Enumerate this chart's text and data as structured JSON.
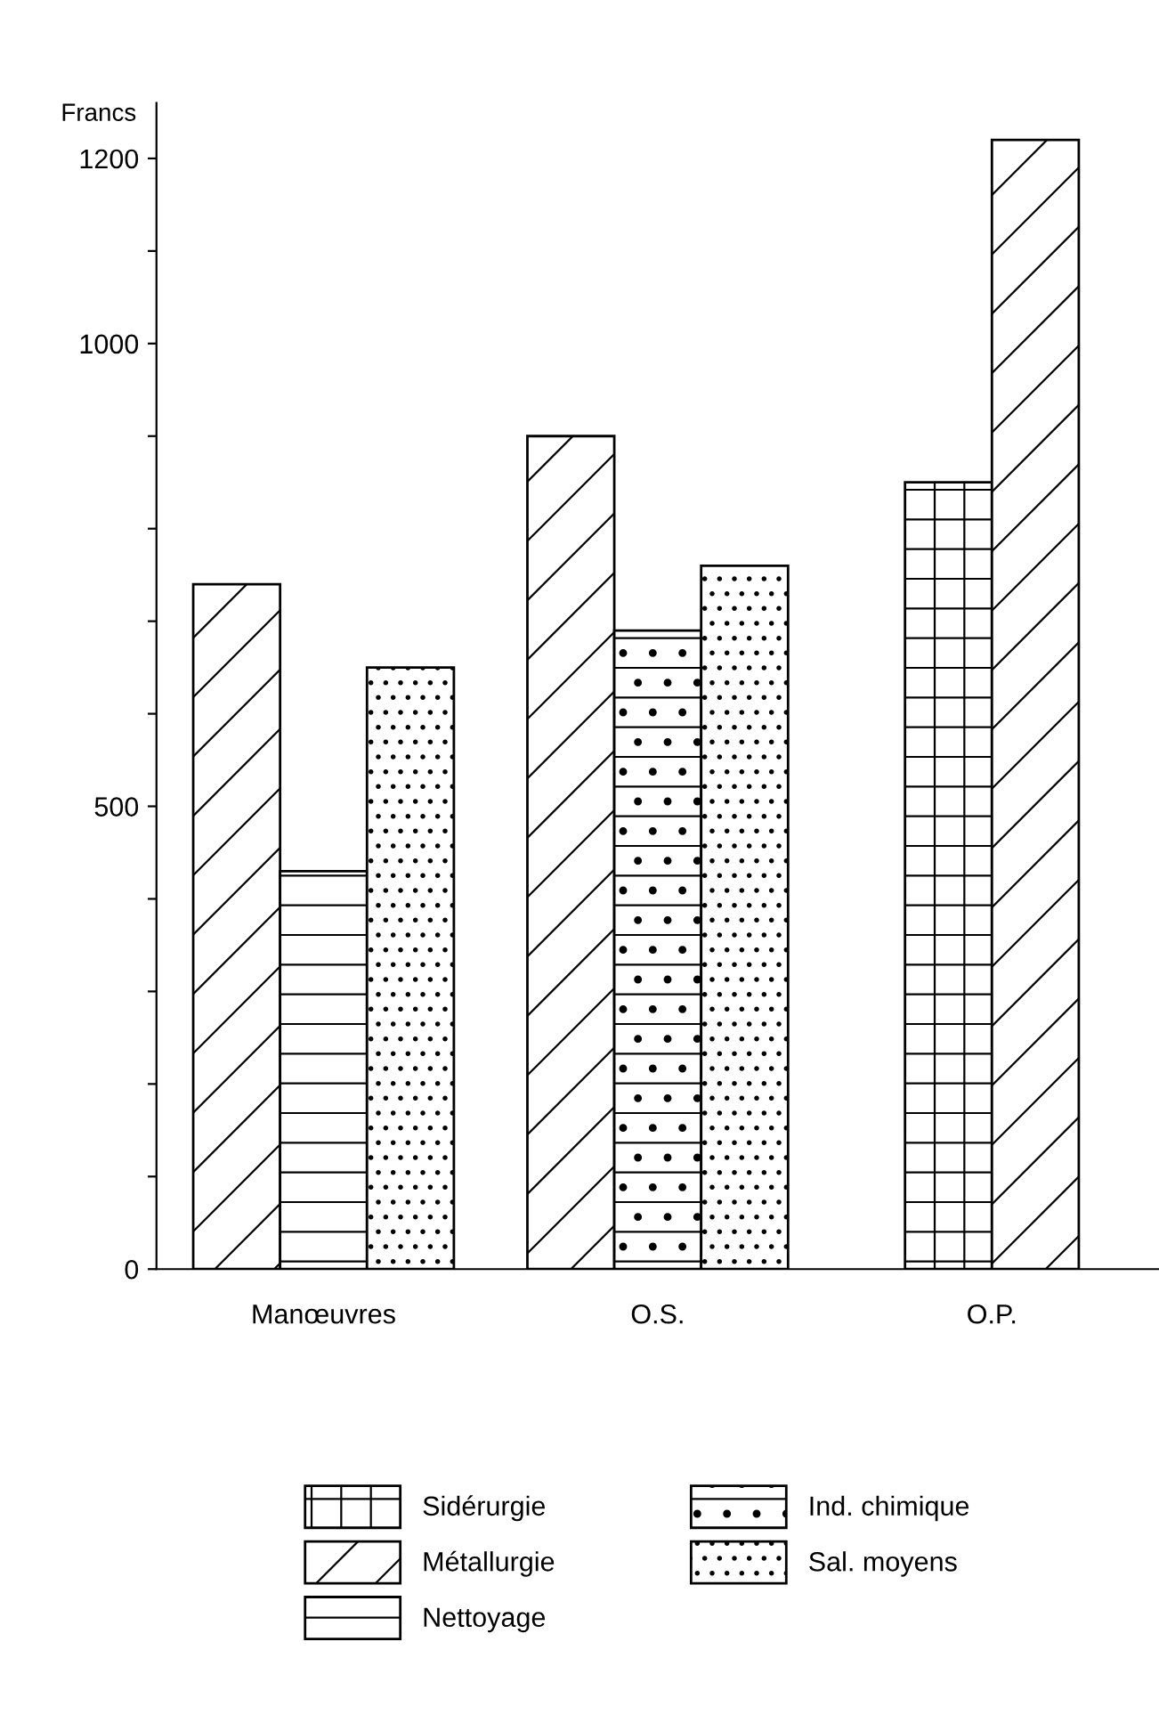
{
  "chart_data": {
    "type": "bar",
    "ylabel": "Francs",
    "categories": [
      "Manœuvres",
      "O.S.",
      "O.P."
    ],
    "series": [
      {
        "name": "Sidérurgie",
        "color": "#000000",
        "values": [
          null,
          null,
          850
        ]
      },
      {
        "name": "Métallurgie",
        "color": "#000000",
        "values": [
          740,
          900,
          1220
        ]
      },
      {
        "name": "Nettoyage",
        "color": "#000000",
        "values": [
          430,
          null,
          null
        ]
      },
      {
        "name": "Ind. chimique",
        "color": "#000000",
        "values": [
          null,
          690,
          null
        ]
      },
      {
        "name": "Sal. moyens",
        "color": "#000000",
        "values": [
          650,
          760,
          null
        ]
      }
    ],
    "ylim": [
      0,
      1260
    ],
    "yticks": [
      0,
      {
        "value": 100,
        "label": null
      },
      {
        "value": 200,
        "label": null
      },
      {
        "value": 300,
        "label": null
      },
      {
        "value": 400,
        "label": null
      },
      500,
      {
        "value": 600,
        "label": null
      },
      {
        "value": 700,
        "label": null
      },
      {
        "value": 800,
        "label": null
      },
      {
        "value": 900,
        "label": null
      },
      1000,
      {
        "value": 1100,
        "label": null
      },
      1200
    ],
    "grid": false,
    "legend": "bottom"
  }
}
